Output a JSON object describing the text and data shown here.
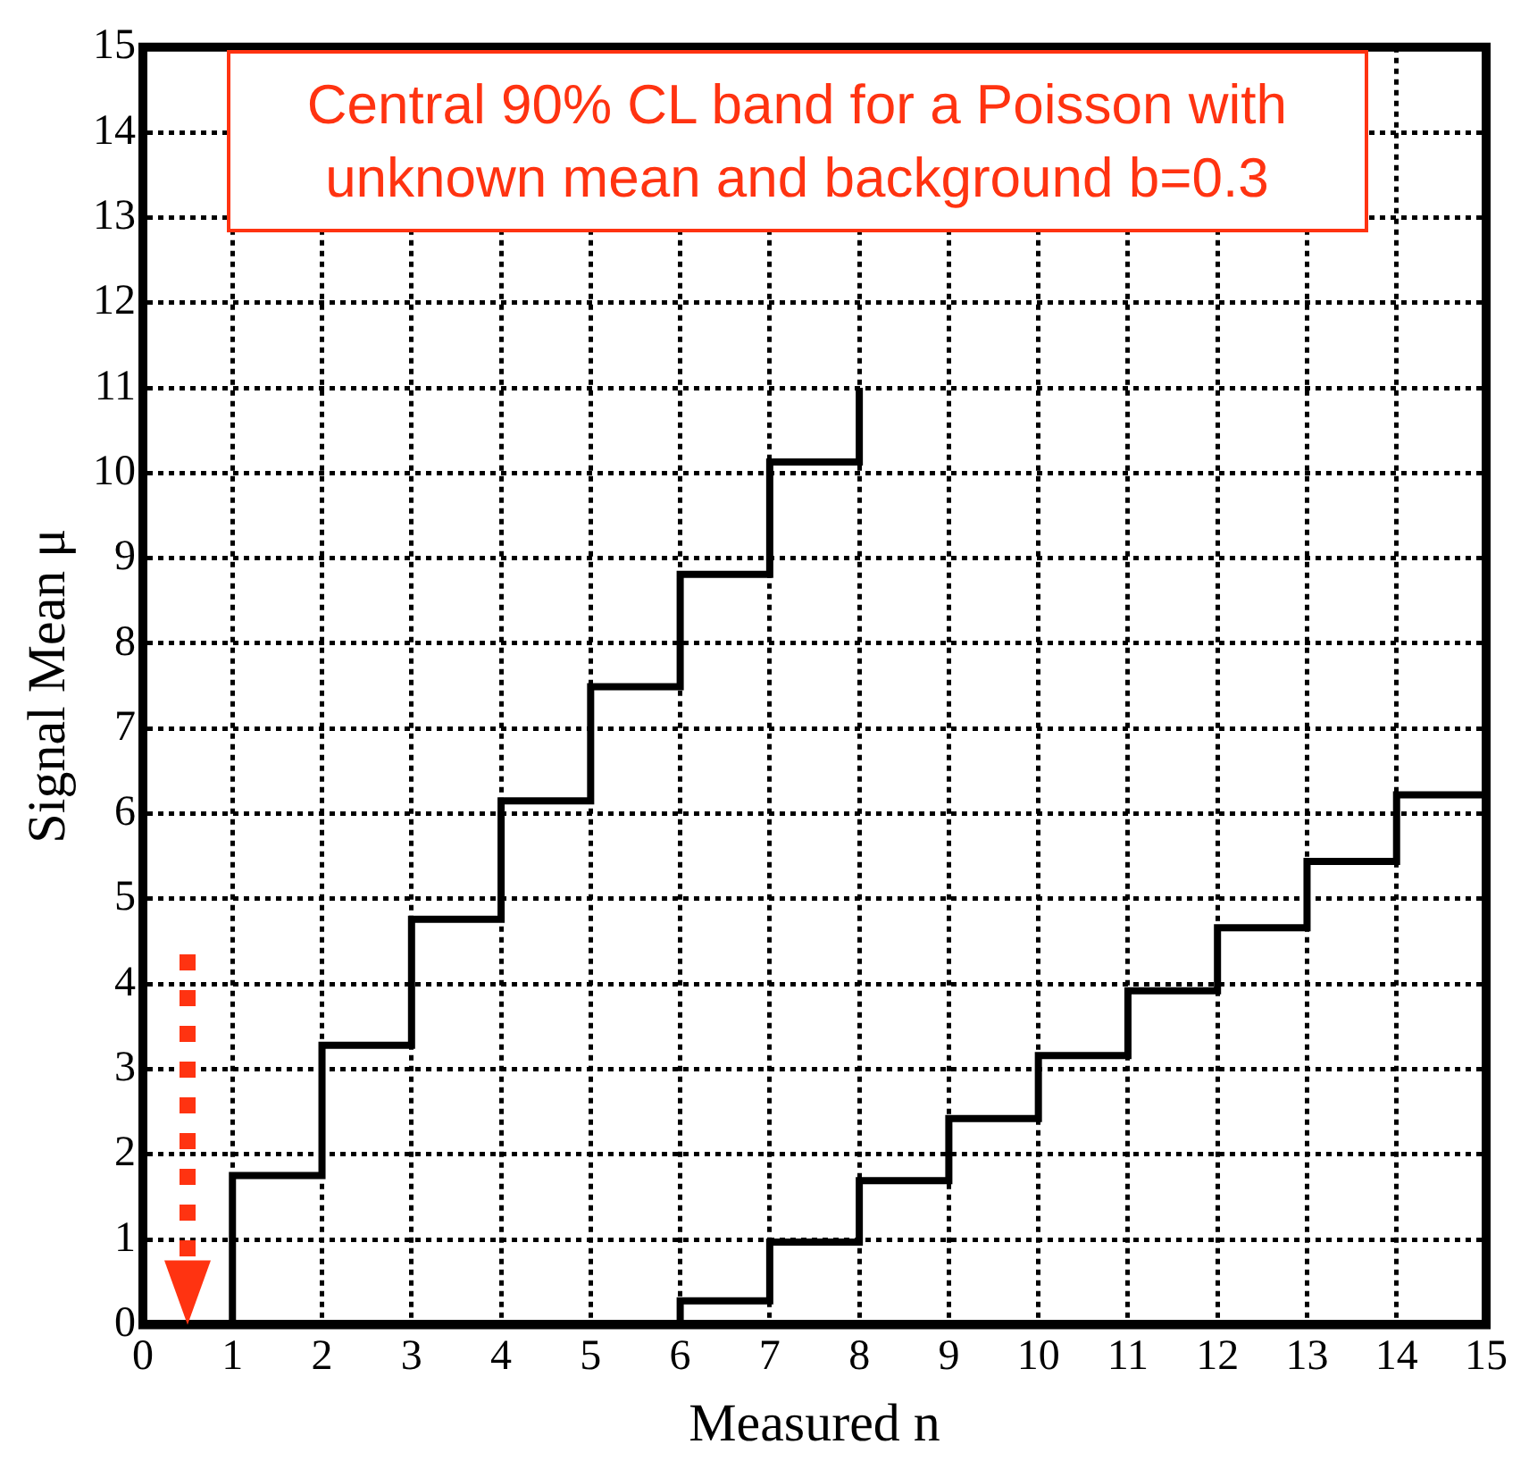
{
  "chart_data": {
    "type": "step",
    "xlabel": "Measured n",
    "ylabel": "Signal Mean μ",
    "series": [
      {
        "color": "#000000",
        "x": [
          1,
          2,
          3,
          4,
          5,
          6,
          7,
          8,
          8
        ],
        "values": [
          0,
          1.75,
          3.28,
          4.76,
          6.15,
          7.49,
          8.81,
          10.13,
          11
        ]
      },
      {
        "color": "#000000",
        "x": [
          6,
          7,
          8,
          9,
          10,
          11,
          12,
          13,
          14,
          15
        ],
        "values": [
          0,
          0.28,
          0.97,
          1.69,
          2.42,
          3.16,
          3.92,
          4.66,
          5.44,
          6.22
        ]
      }
    ],
    "xlim": [
      0,
      15
    ],
    "ylim": [
      0,
      15
    ],
    "xticks": [
      0,
      1,
      2,
      3,
      4,
      5,
      6,
      7,
      8,
      9,
      10,
      11,
      12,
      13,
      14,
      15
    ],
    "yticks": [
      0,
      1,
      2,
      3,
      4,
      5,
      6,
      7,
      8,
      9,
      10,
      11,
      12,
      13,
      14,
      15
    ],
    "grid": true,
    "legend": false,
    "marker": "none",
    "line_style": "solid",
    "annotations": [
      "Central 90% CL band for a Poisson with unknown mean and background b=0.3"
    ]
  }
}
